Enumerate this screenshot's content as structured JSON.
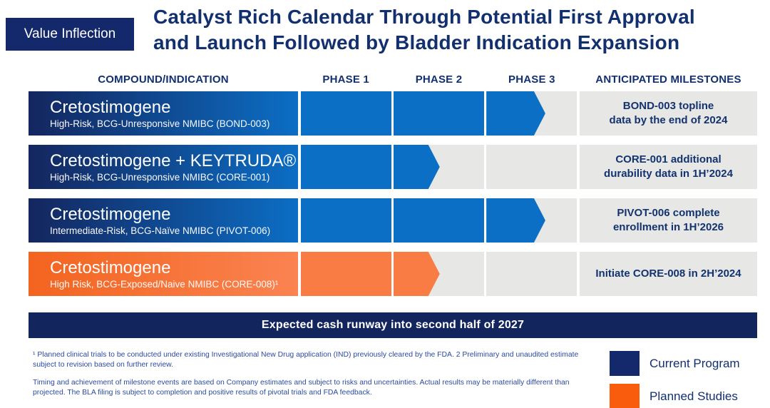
{
  "badge_label": "Value Inflection",
  "title": "Catalyst Rich Calendar Through Potential First Approval\nand Launch Followed by Bladder Indication Expansion",
  "columns": {
    "compound": "COMPOUND/INDICATION",
    "phase1": "PHASE 1",
    "phase2": "PHASE 2",
    "phase3": "PHASE 3",
    "milestones": "ANTICIPATED MILESTONES"
  },
  "chart_data": {
    "type": "table",
    "title": "Catalyst Rich Calendar Through Potential First Approval and Launch Followed by Bladder Indication Expansion",
    "columns": [
      "COMPOUND/INDICATION",
      "PHASE 1",
      "PHASE 2",
      "PHASE 3",
      "ANTICIPATED MILESTONES"
    ],
    "rows": [
      {
        "compound": "Cretostimogene",
        "indication": "High-Risk, BCG-Unresponsive NMIBC (BOND-003)",
        "category": "Current Program",
        "phase_reached": "Phase 3",
        "progress": [
          1,
          1,
          0.65
        ],
        "milestone": "BOND-003 topline\ndata by the end of 2024"
      },
      {
        "compound": "Cretostimogene + KEYTRUDA®",
        "indication": "High-Risk, BCG-Unresponsive NMIBC (CORE-001)",
        "category": "Current Program",
        "phase_reached": "Phase 2",
        "progress": [
          1,
          0.51,
          0
        ],
        "milestone": "CORE-001 additional\ndurability data in 1H’2024"
      },
      {
        "compound": "Cretostimogene",
        "indication": "Intermediate-Risk, BCG-Naïve NMIBC (PIVOT-006)",
        "category": "Current Program",
        "phase_reached": "Phase 3",
        "progress": [
          1,
          1,
          0.65
        ],
        "milestone": "PIVOT-006 complete\nenrollment in 1H’2026"
      },
      {
        "compound": "Cretostimogene",
        "indication": "High Risk, BCG-Exposed/Naive NMIBC (CORE-008)¹",
        "category": "Planned Studies",
        "phase_reached": "Phase 2",
        "progress": [
          1,
          0.51,
          0
        ],
        "milestone": "Initiate CORE-008 in 2H’2024"
      }
    ],
    "legend_position": "bottom-right"
  },
  "banner_text": "Expected cash runway into second half of 2027",
  "footnotes": {
    "note1": "¹ Planned clinical trials to be conducted under existing Investigational New Drug application (IND) previously cleared by the FDA. 2 Preliminary and unaudited estimate subject to revision based on further review.",
    "note2": "Timing and achievement of milestone events are based on Company estimates and subject to risks and uncertainties. Actual results may be materially different than projected. The BLA filing is subject to completion and positive results of pivotal trials and FDA feedback."
  },
  "legend": [
    {
      "label": "Current Program",
      "color": "#14296b"
    },
    {
      "label": "Planned Studies",
      "color": "#f95c0d"
    }
  ],
  "colors": {
    "bar_blue": "#0b6fc5",
    "bar_orange": "#f87c43",
    "gradient_blue": [
      "#14265f",
      "#0c6ec4"
    ],
    "gradient_orange": [
      "#f3641f",
      "#fa8351"
    ],
    "track_gray": "#e7e7e5",
    "banner_navy": "#12255d",
    "title_navy": "#12306e",
    "footnote_blue": "#2a4b9e"
  }
}
